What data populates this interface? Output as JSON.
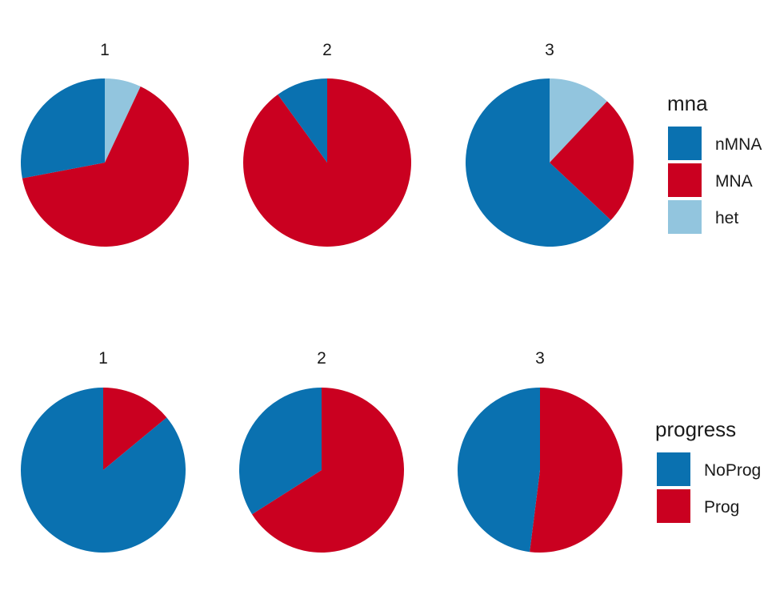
{
  "colors": {
    "nMNA": "#0a71b0",
    "MNA": "#ca0020",
    "het": "#92c5de",
    "NoProg": "#0a71b0",
    "Prog": "#ca0020"
  },
  "chart_data": [
    {
      "type": "pie",
      "facet_variable": "cluster",
      "legend": {
        "title": "mna",
        "placement": "right",
        "entries": [
          "nMNA",
          "MNA",
          "het"
        ]
      },
      "panels": [
        {
          "title": "1",
          "slices": [
            {
              "name": "het",
              "value": 0.07
            },
            {
              "name": "MNA",
              "value": 0.65
            },
            {
              "name": "nMNA",
              "value": 0.28
            }
          ]
        },
        {
          "title": "2",
          "slices": [
            {
              "name": "MNA",
              "value": 0.9
            },
            {
              "name": "nMNA",
              "value": 0.1
            }
          ]
        },
        {
          "title": "3",
          "slices": [
            {
              "name": "het",
              "value": 0.12
            },
            {
              "name": "MNA",
              "value": 0.25
            },
            {
              "name": "nMNA",
              "value": 0.63
            }
          ]
        }
      ]
    },
    {
      "type": "pie",
      "facet_variable": "cluster",
      "legend": {
        "title": "progress",
        "placement": "right",
        "entries": [
          "NoProg",
          "Prog"
        ]
      },
      "panels": [
        {
          "title": "1",
          "slices": [
            {
              "name": "Prog",
              "value": 0.14
            },
            {
              "name": "NoProg",
              "value": 0.86
            }
          ]
        },
        {
          "title": "2",
          "slices": [
            {
              "name": "Prog",
              "value": 0.66
            },
            {
              "name": "NoProg",
              "value": 0.34
            }
          ]
        },
        {
          "title": "3",
          "slices": [
            {
              "name": "Prog",
              "value": 0.52
            },
            {
              "name": "NoProg",
              "value": 0.48
            }
          ]
        }
      ]
    }
  ]
}
